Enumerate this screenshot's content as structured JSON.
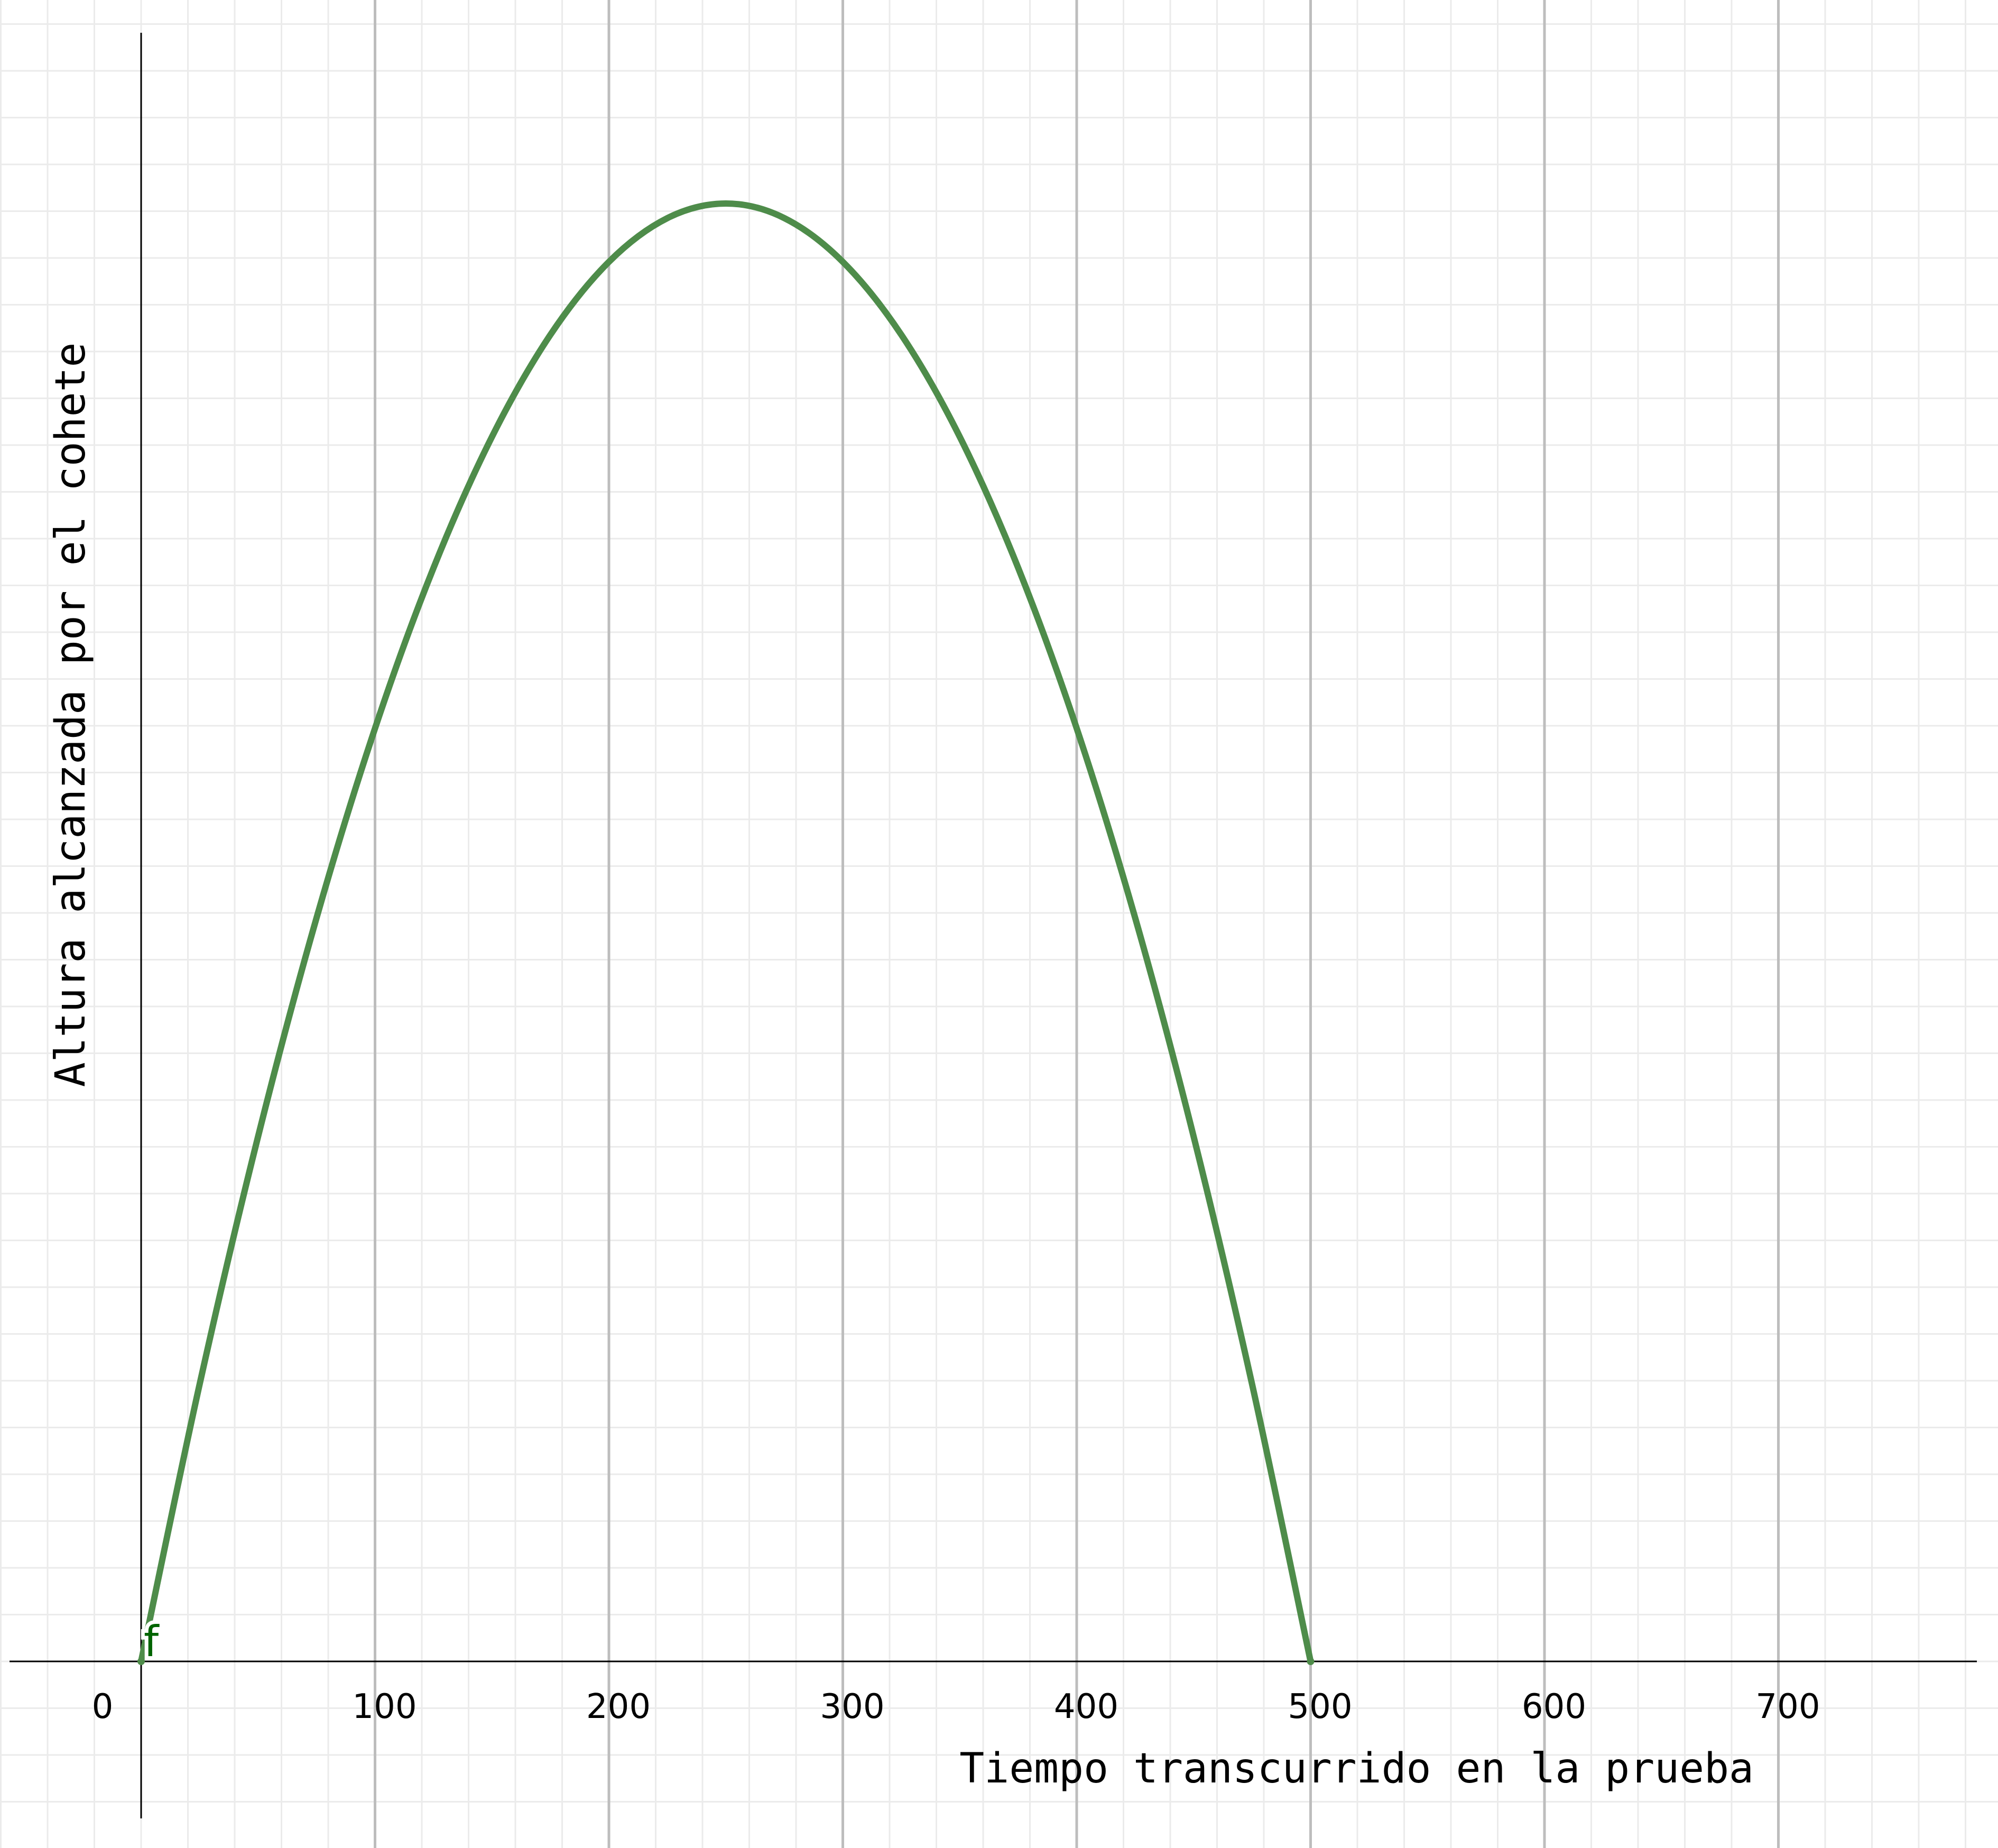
{
  "chart_data": {
    "type": "line",
    "title": "",
    "xlabel": "Tiempo transcurrido en la prueba",
    "ylabel": "Altura alcanzada por el cohete",
    "x_ticks": [
      "0",
      "100",
      "200",
      "300",
      "400",
      "500",
      "600",
      "700"
    ],
    "xlim": [
      -55,
      784
    ],
    "grid": true,
    "series": [
      {
        "name": "f",
        "color": "#4e8c4a",
        "x": [
          0,
          25,
          50,
          75,
          100,
          125,
          150,
          175,
          200,
          225,
          250,
          275,
          300,
          325,
          350,
          375,
          400,
          425,
          450,
          475,
          500
        ],
        "y": [
          0,
          0.19,
          0.36,
          0.51,
          0.64,
          0.75,
          0.84,
          0.91,
          0.96,
          0.99,
          1.0,
          0.99,
          0.96,
          0.91,
          0.84,
          0.75,
          0.64,
          0.51,
          0.36,
          0.19,
          0
        ]
      }
    ]
  }
}
